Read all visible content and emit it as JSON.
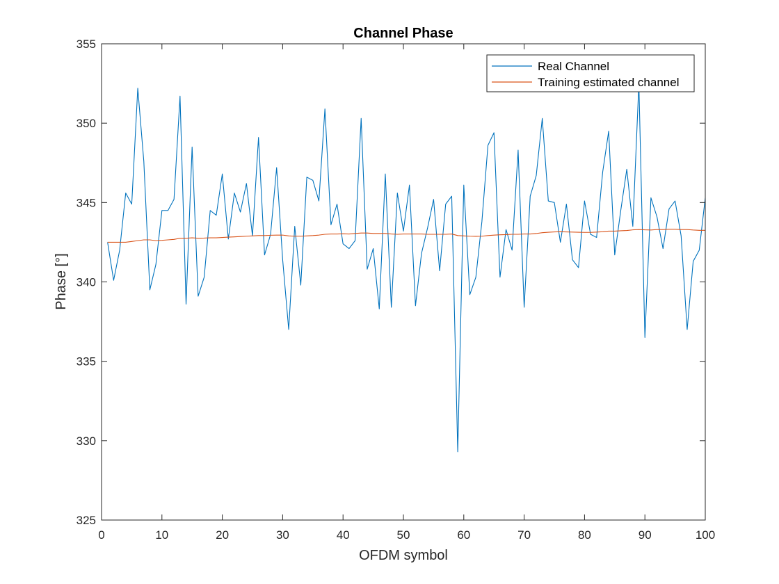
{
  "chart_data": {
    "type": "line",
    "title": "Channel Phase",
    "xlabel": "OFDM symbol",
    "ylabel": "Phase [°]",
    "xlim": [
      0,
      100
    ],
    "ylim": [
      325,
      355
    ],
    "xticks": [
      0,
      10,
      20,
      30,
      40,
      50,
      60,
      70,
      80,
      90,
      100
    ],
    "yticks": [
      325,
      330,
      335,
      340,
      345,
      350,
      355
    ],
    "grid": false,
    "legend_position": "top-right",
    "x": [
      1,
      2,
      3,
      4,
      5,
      6,
      7,
      8,
      9,
      10,
      11,
      12,
      13,
      14,
      15,
      16,
      17,
      18,
      19,
      20,
      21,
      22,
      23,
      24,
      25,
      26,
      27,
      28,
      29,
      30,
      31,
      32,
      33,
      34,
      35,
      36,
      37,
      38,
      39,
      40,
      41,
      42,
      43,
      44,
      45,
      46,
      47,
      48,
      49,
      50,
      51,
      52,
      53,
      54,
      55,
      56,
      57,
      58,
      59,
      60,
      61,
      62,
      63,
      64,
      65,
      66,
      67,
      68,
      69,
      70,
      71,
      72,
      73,
      74,
      75,
      76,
      77,
      78,
      79,
      80,
      81,
      82,
      83,
      84,
      85,
      86,
      87,
      88,
      89,
      90,
      91,
      92,
      93,
      94,
      95,
      96,
      97,
      98,
      99,
      100
    ],
    "series": [
      {
        "name": "Real Channel",
        "color": "#0072BD",
        "values": [
          342.5,
          340.1,
          342.0,
          345.6,
          344.9,
          352.2,
          347.6,
          339.5,
          341.1,
          344.5,
          344.5,
          345.2,
          351.7,
          338.6,
          348.5,
          339.1,
          340.3,
          344.5,
          344.2,
          346.8,
          342.7,
          345.6,
          344.4,
          346.2,
          342.9,
          349.1,
          341.7,
          343.0,
          347.2,
          341.4,
          337.0,
          343.5,
          339.8,
          346.6,
          346.4,
          345.1,
          350.9,
          343.6,
          344.9,
          342.4,
          342.1,
          342.6,
          350.3,
          340.8,
          342.1,
          338.3,
          346.8,
          338.4,
          345.6,
          343.2,
          346.1,
          338.5,
          341.8,
          343.4,
          345.2,
          340.7,
          344.9,
          345.4,
          329.3,
          346.1,
          339.2,
          340.3,
          343.8,
          348.6,
          349.4,
          340.3,
          343.3,
          342.0,
          348.3,
          338.4,
          345.4,
          346.7,
          350.3,
          345.1,
          345.0,
          342.5,
          344.9,
          341.4,
          340.9,
          345.1,
          343.0,
          342.8,
          346.9,
          349.5,
          341.7,
          344.5,
          347.1,
          343.5,
          352.5,
          336.5,
          345.3,
          344.1,
          342.1,
          344.6,
          345.1,
          342.9,
          337.0,
          341.3,
          342.0,
          345.3
        ]
      },
      {
        "name": "Training estimated channel",
        "color": "#D95319",
        "values": [
          342.5,
          342.5,
          342.5,
          342.5,
          342.55,
          342.6,
          342.65,
          342.65,
          342.6,
          342.62,
          342.65,
          342.68,
          342.75,
          342.75,
          342.78,
          342.75,
          342.76,
          342.78,
          342.78,
          342.8,
          342.82,
          342.84,
          342.86,
          342.88,
          342.9,
          342.92,
          342.92,
          342.94,
          342.95,
          342.95,
          342.9,
          342.88,
          342.88,
          342.9,
          342.92,
          342.95,
          343.0,
          343.02,
          343.02,
          343.03,
          343.02,
          343.05,
          343.08,
          343.08,
          343.05,
          343.05,
          343.05,
          343.02,
          343.0,
          343.02,
          343.02,
          343.02,
          343.02,
          343.0,
          343.0,
          343.0,
          343.0,
          343.02,
          342.92,
          342.9,
          342.88,
          342.87,
          342.88,
          342.92,
          342.95,
          342.97,
          342.98,
          343.0,
          343.0,
          343.02,
          343.02,
          343.05,
          343.1,
          343.13,
          343.15,
          343.16,
          343.15,
          343.14,
          343.13,
          343.12,
          343.12,
          343.14,
          343.16,
          343.2,
          343.2,
          343.22,
          343.24,
          343.28,
          343.3,
          343.28,
          343.27,
          343.3,
          343.3,
          343.32,
          343.32,
          343.3,
          343.3,
          343.27,
          343.25,
          343.25
        ]
      }
    ]
  }
}
